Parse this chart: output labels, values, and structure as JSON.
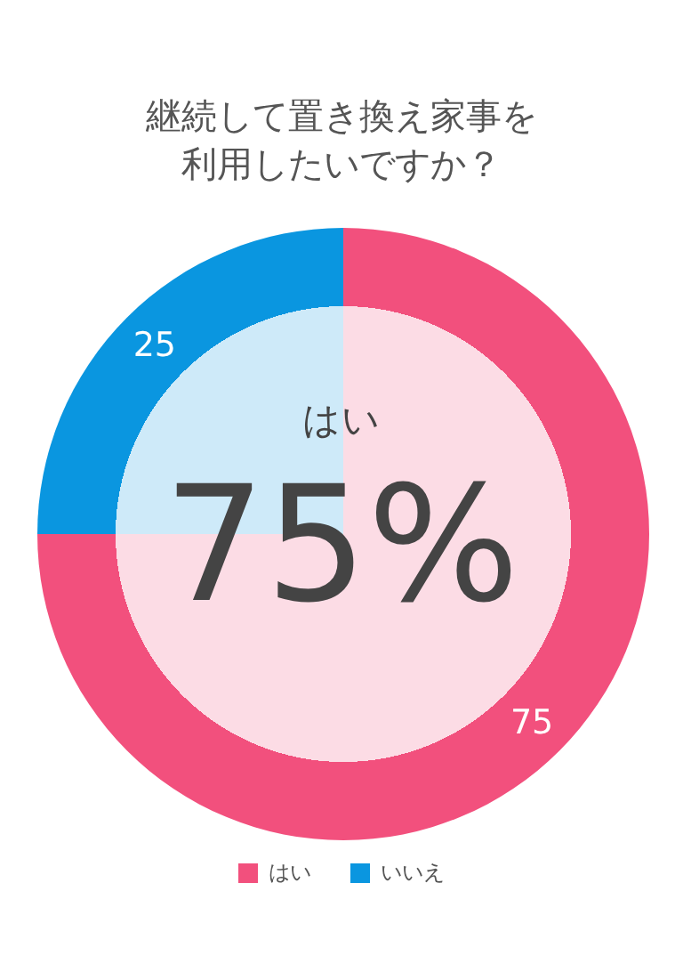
{
  "chart_data": {
    "type": "pie",
    "title": "継続して置き換え家事を利用したいですか？",
    "categories": [
      "はい",
      "いいえ"
    ],
    "values": [
      75,
      25
    ],
    "colors": [
      "#f2507d",
      "#0a96e0"
    ],
    "data_labels": true,
    "legend": "bottom",
    "annotations": [
      "はい",
      "75%"
    ]
  }
}
